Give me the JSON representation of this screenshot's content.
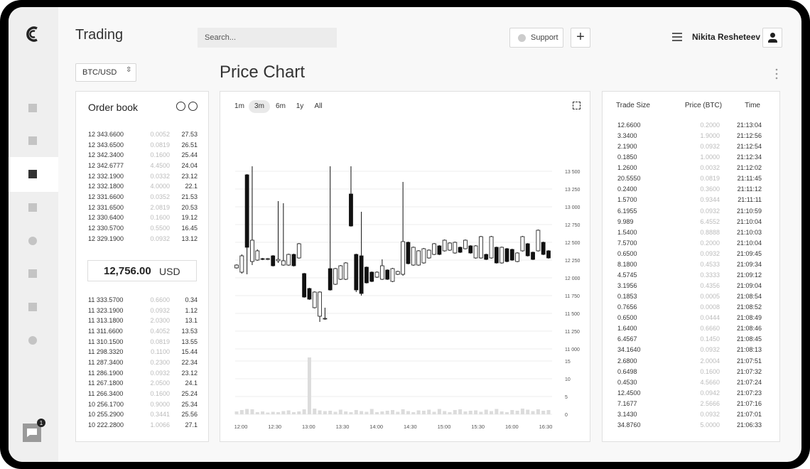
{
  "header": {
    "title": "Trading",
    "search_placeholder": "Search...",
    "support": "Support",
    "add": "+",
    "user_name": "Nikita Resheteev"
  },
  "pair": "BTC/USD",
  "notification_count": "1",
  "order_book": {
    "title": "Order book",
    "asks": [
      [
        "12 343.6600",
        "0.0052",
        "27.53"
      ],
      [
        "12 343.6500",
        "0.0819",
        "26.51"
      ],
      [
        "12 342.3400",
        "0.1600",
        "25.44"
      ],
      [
        "12 342.6777",
        "4.4500",
        "24.04"
      ],
      [
        "12 332.1900",
        "0.0332",
        "23.12"
      ],
      [
        "12 332.1800",
        "4.0000",
        "22.1"
      ],
      [
        "12 331.6600",
        "0.0352",
        "21.53"
      ],
      [
        "12 331.6500",
        "2.0819",
        "20.53"
      ],
      [
        "12 330.6400",
        "0.1600",
        "19.12"
      ],
      [
        "12 330.5700",
        "0.5500",
        "16.45"
      ],
      [
        "12 329.1900",
        "0.0932",
        "13.12"
      ]
    ],
    "last_price": "12,756.00",
    "currency": "USD",
    "bids": [
      [
        "11 333.5700",
        "0.6600",
        "0.34"
      ],
      [
        "11 323.1900",
        "0.0932",
        "1.12"
      ],
      [
        "11 313.1800",
        "2.0300",
        "13.1"
      ],
      [
        "11 311.6600",
        "0.4052",
        "13.53"
      ],
      [
        "11 310.1500",
        "0.0819",
        "13.55"
      ],
      [
        "11 298.3320",
        "0.1100",
        "15.44"
      ],
      [
        "11 287.3400",
        "0.2300",
        "22.34"
      ],
      [
        "11 286.1900",
        "0.0932",
        "23.12"
      ],
      [
        "11 267.1800",
        "2.0500",
        "24.1"
      ],
      [
        "11 266.3400",
        "0.1600",
        "25.24"
      ],
      [
        "10 256.1700",
        "0.9000",
        "25.34"
      ],
      [
        "10 255.2900",
        "0.3441",
        "25.56"
      ],
      [
        "10 222.2800",
        "1.0066",
        "27.1"
      ]
    ]
  },
  "price_chart": {
    "title": "Price Chart",
    "ranges": [
      "1m",
      "3m",
      "6m",
      "1y",
      "All"
    ],
    "active_range": 1,
    "chart_data": {
      "type": "candlestick",
      "x_labels": [
        "12:00",
        "12:30",
        "13:00",
        "13:30",
        "14:00",
        "14:30",
        "15:00",
        "15:30",
        "16:00",
        "16:30"
      ],
      "open": [
        12140,
        12080,
        13450,
        12230,
        12250,
        12270,
        12260,
        12310,
        12240,
        12180,
        12180,
        12330,
        12280,
        12060,
        11850,
        11580,
        11460,
        11420,
        12130,
        11910,
        11980,
        11980,
        13180,
        12330,
        12310,
        12150,
        12080,
        12010,
        11980,
        12110,
        11950,
        12050,
        12050,
        12500,
        12180,
        12180,
        12210,
        12280,
        12330,
        12450,
        12380,
        12390,
        12350,
        12430,
        12410,
        12450,
        12280,
        12280,
        12330,
        12280,
        12430,
        12210,
        12410,
        12400,
        12230,
        12380,
        12480,
        12360,
        12380,
        12500,
        12380
      ],
      "high": [
        12190,
        12330,
        13460,
        13570,
        12400,
        12280,
        12280,
        12320,
        13080,
        13050,
        12340,
        12340,
        12490,
        12070,
        11860,
        11810,
        11810,
        11580,
        13570,
        12140,
        12180,
        12220,
        13570,
        12340,
        12930,
        12160,
        12090,
        12090,
        12260,
        12120,
        12140,
        12100,
        13350,
        12510,
        12440,
        12390,
        12420,
        12400,
        12490,
        12460,
        12540,
        12500,
        12510,
        12440,
        12540,
        12460,
        12460,
        12590,
        12340,
        12590,
        12440,
        12440,
        12420,
        12410,
        12360,
        12590,
        12490,
        12370,
        12680,
        12510,
        12390
      ],
      "low": [
        12130,
        12060,
        12050,
        12180,
        12240,
        12250,
        12250,
        12160,
        12210,
        12170,
        12170,
        12160,
        12270,
        11720,
        11690,
        11570,
        11380,
        11410,
        11820,
        11900,
        11970,
        11970,
        12720,
        11800,
        11750,
        11920,
        11940,
        12000,
        11970,
        11970,
        11940,
        12040,
        12030,
        12190,
        12170,
        12170,
        12200,
        12270,
        12320,
        12320,
        12370,
        12380,
        12340,
        12350,
        12400,
        12340,
        12270,
        12270,
        12250,
        12270,
        12200,
        12200,
        12220,
        12240,
        12220,
        12370,
        12300,
        12250,
        12370,
        12320,
        12270
      ],
      "close": [
        12180,
        12310,
        12430,
        12530,
        12380,
        12260,
        12270,
        12170,
        12260,
        12240,
        12330,
        12170,
        12480,
        11730,
        11700,
        11800,
        11800,
        11430,
        11830,
        12130,
        12170,
        12210,
        12730,
        11830,
        11780,
        11930,
        11950,
        12080,
        12170,
        11980,
        12130,
        12090,
        12510,
        12200,
        12430,
        12380,
        12410,
        12390,
        12480,
        12330,
        12530,
        12490,
        12500,
        12360,
        12530,
        12350,
        12450,
        12580,
        12260,
        12580,
        12210,
        12430,
        12230,
        12250,
        12350,
        12580,
        12310,
        12260,
        12670,
        12330,
        12280
      ],
      "volume": [
        0.8,
        1.2,
        1.5,
        1.4,
        0.6,
        0.8,
        0.5,
        0.7,
        0.6,
        0.9,
        1.1,
        0.6,
        0.8,
        1.4,
        16,
        1.6,
        1.1,
        0.9,
        1.0,
        0.7,
        1.3,
        0.8,
        0.6,
        1.2,
        0.9,
        0.7,
        1.5,
        0.6,
        0.8,
        1.0,
        1.2,
        0.7,
        1.4,
        0.9,
        0.6,
        1.1,
        1.0,
        1.3,
        0.7,
        1.5,
        0.9,
        0.6,
        1.2,
        1.4,
        0.8,
        1.0,
        1.1,
        0.7,
        1.3,
        0.9,
        1.5,
        0.8,
        0.6,
        1.2,
        1.0,
        1.6,
        1.3,
        0.9,
        1.4,
        1.0,
        1.2
      ],
      "ylim": [
        10900,
        13700
      ],
      "yticks": [
        {
          "value": 13500,
          "label": "13 500"
        },
        {
          "value": 13250,
          "label": "13 250"
        },
        {
          "value": 13000,
          "label": "13 000"
        },
        {
          "value": 12750,
          "label": "12 750"
        },
        {
          "value": 12500,
          "label": "12 500"
        },
        {
          "value": 12250,
          "label": "12 250"
        },
        {
          "value": 12000,
          "label": "12 000"
        },
        {
          "value": 11750,
          "label": "11 750"
        },
        {
          "value": 11500,
          "label": "11 500"
        },
        {
          "value": 11250,
          "label": "11 250"
        },
        {
          "value": 11000,
          "label": "11 000"
        }
      ],
      "volume_ylim": [
        0,
        16
      ],
      "volume_yticks": [
        15,
        10,
        5,
        0
      ],
      "grid": true,
      "up_color": "#ffffff",
      "down_color": "#111111"
    }
  },
  "trades": {
    "columns": [
      "Trade Size",
      "Price (BTC)",
      "Time"
    ],
    "rows": [
      [
        "12.6600",
        "0.2000",
        "21:13:04"
      ],
      [
        "3.3400",
        "1.9000",
        "21:12:56"
      ],
      [
        "2.1900",
        "0.0932",
        "21:12:54"
      ],
      [
        "0.1850",
        "1.0000",
        "21:12:34"
      ],
      [
        "1.2600",
        "0.0032",
        "21:12:02"
      ],
      [
        "20.5550",
        "0.0819",
        "21:11:45"
      ],
      [
        "0.2400",
        "0.3600",
        "21:11:12"
      ],
      [
        "1.5700",
        "0.9344",
        "21:11:11"
      ],
      [
        "6.1955",
        "0.0932",
        "21:10:59"
      ],
      [
        "9.989",
        "6.4552",
        "21:10:04"
      ],
      [
        "1.5400",
        "0.8888",
        "21:10:03"
      ],
      [
        "7.5700",
        "0.2000",
        "21:10:04"
      ],
      [
        "0.6500",
        "0.0932",
        "21:09:45"
      ],
      [
        "8.1800",
        "0.4533",
        "21:09:34"
      ],
      [
        "4.5745",
        "0.3333",
        "21:09:12"
      ],
      [
        "3.1956",
        "0.4356",
        "21:09:04"
      ],
      [
        "0.1853",
        "0.0005",
        "21:08:54"
      ],
      [
        "0.7656",
        "0.0008",
        "21:08:52"
      ],
      [
        "0.6500",
        "0.0444",
        "21:08:49"
      ],
      [
        "1.6400",
        "0.6660",
        "21:08:46"
      ],
      [
        "6.4567",
        "0.1450",
        "21:08:45"
      ],
      [
        "34.1640",
        "0.0932",
        "21:08:13"
      ],
      [
        "2.6800",
        "2.0004",
        "21:07:51"
      ],
      [
        "0.6498",
        "0.1600",
        "21:07:32"
      ],
      [
        "0.4530",
        "4.5660",
        "21:07:24"
      ],
      [
        "12.4500",
        "0.0942",
        "21:07:23"
      ],
      [
        "7.1677",
        "2.5666",
        "21:07:16"
      ],
      [
        "3.1430",
        "0.0932",
        "21:07:01"
      ],
      [
        "34.8760",
        "5.0000",
        "21:06:33"
      ]
    ]
  }
}
